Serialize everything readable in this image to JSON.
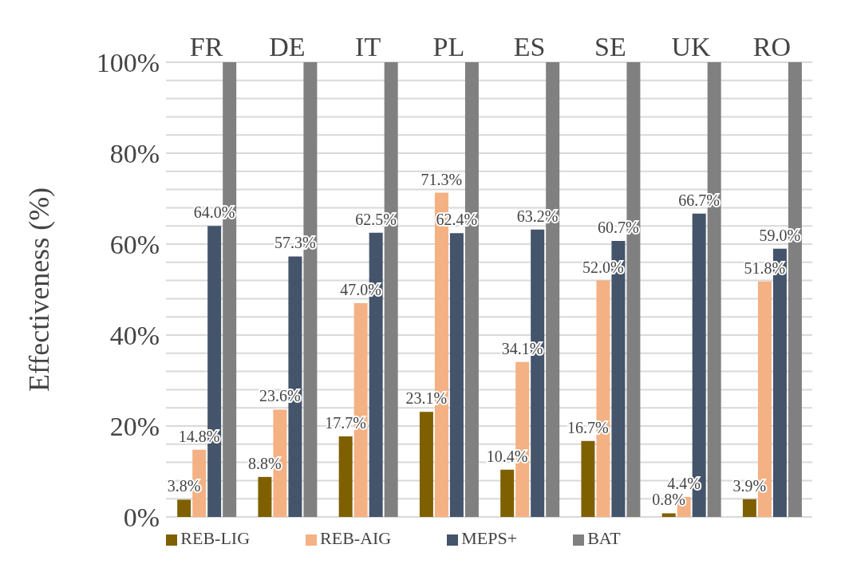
{
  "chart_data": {
    "type": "bar",
    "ylabel": "Effectiveness (%)",
    "categories": [
      "FR",
      "DE",
      "IT",
      "PL",
      "ES",
      "SE",
      "UK",
      "RO"
    ],
    "series": [
      {
        "name": "REB-LIG",
        "color": "#7f6000",
        "values": [
          3.8,
          8.8,
          17.7,
          23.1,
          10.4,
          16.7,
          0.8,
          3.9
        ],
        "value_labels": [
          "3.8%",
          "8.8%",
          "17.7%",
          "23.1%",
          "10.4%",
          "16.7%",
          "0.8%",
          "3.9%"
        ]
      },
      {
        "name": "REB-AIG",
        "color": "#f4b183",
        "values": [
          14.8,
          23.6,
          47.0,
          71.3,
          34.1,
          52.0,
          4.4,
          51.8
        ],
        "value_labels": [
          "14.8%",
          "23.6%",
          "47.0%",
          "71.3%",
          "34.1%",
          "52.0%",
          "4.4%",
          "51.8%"
        ]
      },
      {
        "name": "MEPS+",
        "color": "#44546a",
        "values": [
          64.0,
          57.3,
          62.5,
          62.4,
          63.2,
          60.7,
          66.7,
          59.0
        ],
        "value_labels": [
          "64.0%",
          "57.3%",
          "62.5%",
          "62.4%",
          "63.2%",
          "60.7%",
          "66.7%",
          "59.0%"
        ]
      },
      {
        "name": "BAT",
        "color": "#808080",
        "values": [
          100,
          100,
          100,
          100,
          100,
          100,
          100,
          100
        ]
      }
    ],
    "ylim": [
      0,
      100
    ],
    "yticks": [
      {
        "value": 0,
        "label": "0%"
      },
      {
        "value": 4,
        "label": null
      },
      {
        "value": 8,
        "label": null
      },
      {
        "value": 12,
        "label": null
      },
      {
        "value": 16,
        "label": null
      },
      {
        "value": 20,
        "label": "20%"
      },
      {
        "value": 24,
        "label": null
      },
      {
        "value": 28,
        "label": null
      },
      {
        "value": 32,
        "label": null
      },
      {
        "value": 36,
        "label": null
      },
      {
        "value": 40,
        "label": "40%"
      },
      {
        "value": 44,
        "label": null
      },
      {
        "value": 48,
        "label": null
      },
      {
        "value": 52,
        "label": null
      },
      {
        "value": 56,
        "label": null
      },
      {
        "value": 60,
        "label": "60%"
      },
      {
        "value": 64,
        "label": null
      },
      {
        "value": 68,
        "label": null
      },
      {
        "value": 72,
        "label": null
      },
      {
        "value": 76,
        "label": null
      },
      {
        "value": 80,
        "label": "80%"
      },
      {
        "value": 84,
        "label": null
      },
      {
        "value": 88,
        "label": null
      },
      {
        "value": 92,
        "label": null
      },
      {
        "value": 96,
        "label": null
      },
      {
        "value": 100,
        "label": "100%"
      }
    ],
    "grid": "y",
    "legend": "bottom"
  }
}
